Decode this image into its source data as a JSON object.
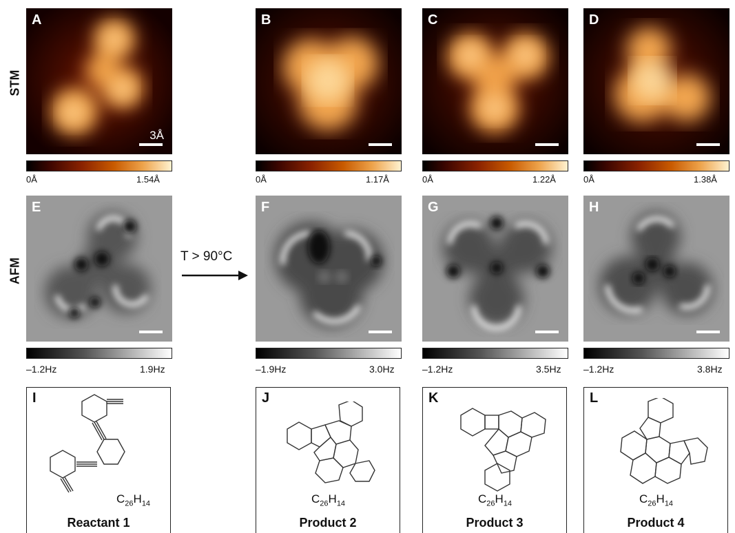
{
  "row_labels": {
    "stm": "STM",
    "afm": "AFM"
  },
  "stm_panels": [
    {
      "label": "A",
      "scale_text": "3Å",
      "cbar_min": "0Å",
      "cbar_max": "1.54Å"
    },
    {
      "label": "B",
      "scale_text": "",
      "cbar_min": "0Å",
      "cbar_max": "1.17Å"
    },
    {
      "label": "C",
      "scale_text": "",
      "cbar_min": "0Å",
      "cbar_max": "1.22Å"
    },
    {
      "label": "D",
      "scale_text": "",
      "cbar_min": "0Å",
      "cbar_max": "1.38Å"
    }
  ],
  "afm_panels": [
    {
      "label": "E",
      "cbar_min": "–1.2Hz",
      "cbar_max": "1.9Hz"
    },
    {
      "label": "F",
      "cbar_min": "–1.9Hz",
      "cbar_max": "3.0Hz"
    },
    {
      "label": "G",
      "cbar_min": "–1.2Hz",
      "cbar_max": "3.5Hz"
    },
    {
      "label": "H",
      "cbar_min": "–1.2Hz",
      "cbar_max": "3.8Hz"
    }
  ],
  "arrow_text": "T > 90°C",
  "structures": [
    {
      "label": "I",
      "formula_c": "C",
      "formula_c_sub": "26",
      "formula_h": "H",
      "formula_h_sub": "14",
      "name": "Reactant 1"
    },
    {
      "label": "J",
      "formula_c": "C",
      "formula_c_sub": "26",
      "formula_h": "H",
      "formula_h_sub": "14",
      "name": "Product 2"
    },
    {
      "label": "K",
      "formula_c": "C",
      "formula_c_sub": "26",
      "formula_h": "H",
      "formula_h_sub": "14",
      "name": "Product 3"
    },
    {
      "label": "L",
      "formula_c": "C",
      "formula_c_sub": "26",
      "formula_h": "H",
      "formula_h_sub": "14",
      "name": "Product 4"
    }
  ]
}
